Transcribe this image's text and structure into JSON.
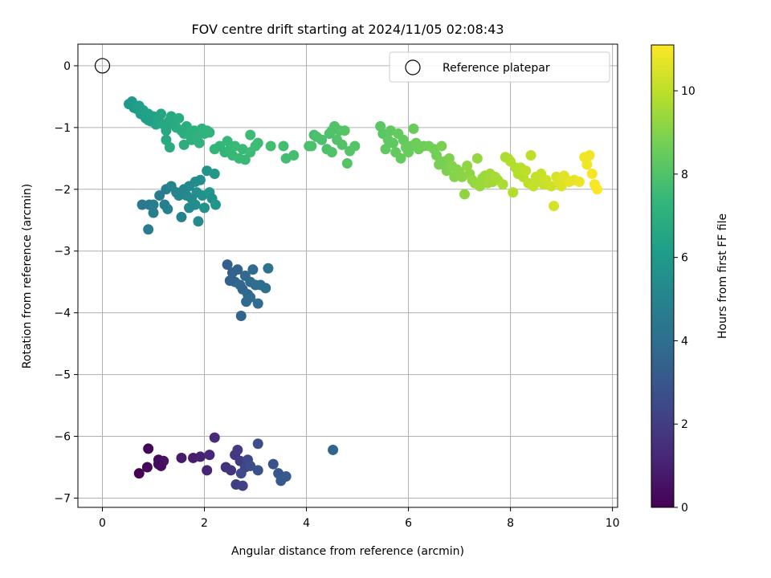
{
  "chart_data": {
    "type": "scatter",
    "title": "FOV centre drift starting at 2024/11/05 02:08:43",
    "xlabel": "Angular distance from reference (arcmin)",
    "ylabel": "Rotation from reference (arcmin)",
    "xlim": [
      -0.48,
      10.1
    ],
    "ylim": [
      -7.15,
      0.35
    ],
    "xticks": [
      0,
      2,
      4,
      6,
      8,
      10
    ],
    "yticks": [
      0,
      -1,
      -2,
      -3,
      -4,
      -5,
      -6,
      -7
    ],
    "grid": true,
    "legend": {
      "placement": "upper-right",
      "entries": [
        "Reference platepar"
      ]
    },
    "colorbar": {
      "label": "Hours from first FF file",
      "range": [
        0,
        11.1
      ],
      "ticks": [
        0,
        2,
        4,
        6,
        8,
        10
      ],
      "colormap": [
        "#440154",
        "#482878",
        "#3e4989",
        "#31688e",
        "#26828e",
        "#1f9e89",
        "#35b779",
        "#6ece58",
        "#b5de2b",
        "#fde725"
      ]
    },
    "reference_point": {
      "x": 0,
      "y": 0
    },
    "series": [
      {
        "points": [
          [
            0.72,
            -6.6,
            0.0
          ],
          [
            0.9,
            -6.2,
            0.1
          ],
          [
            0.88,
            -6.5,
            0.2
          ],
          [
            1.1,
            -6.38,
            0.3
          ],
          [
            1.15,
            -6.48,
            0.4
          ],
          [
            1.2,
            -6.4,
            0.5
          ],
          [
            1.1,
            -6.45,
            0.35
          ],
          [
            1.55,
            -6.35,
            0.8
          ],
          [
            1.78,
            -6.35,
            0.9
          ],
          [
            1.92,
            -6.33,
            1.0
          ],
          [
            2.05,
            -6.55,
            1.1
          ],
          [
            2.1,
            -6.3,
            1.2
          ],
          [
            2.2,
            -6.02,
            1.3
          ],
          [
            2.42,
            -6.5,
            1.6
          ],
          [
            2.52,
            -6.55,
            1.7
          ],
          [
            2.6,
            -6.3,
            1.8
          ],
          [
            2.65,
            -6.22,
            1.9
          ],
          [
            2.7,
            -6.4,
            2.0
          ],
          [
            2.62,
            -6.78,
            2.1
          ],
          [
            2.75,
            -6.8,
            2.2
          ],
          [
            2.8,
            -6.5,
            2.3
          ],
          [
            2.85,
            -6.38,
            2.4
          ],
          [
            2.72,
            -6.6,
            2.5
          ],
          [
            2.9,
            -6.48,
            2.6
          ],
          [
            3.05,
            -6.12,
            2.7
          ],
          [
            3.05,
            -6.55,
            2.8
          ],
          [
            3.35,
            -6.45,
            2.9
          ],
          [
            3.45,
            -6.6,
            3.0
          ],
          [
            3.5,
            -6.72,
            3.1
          ],
          [
            3.6,
            -6.65,
            3.2
          ],
          [
            4.52,
            -6.22,
            3.6
          ],
          [
            2.45,
            -3.22,
            3.4
          ],
          [
            2.55,
            -3.35,
            3.5
          ],
          [
            2.6,
            -3.5,
            3.6
          ],
          [
            2.5,
            -3.48,
            3.5
          ],
          [
            2.7,
            -3.55,
            3.7
          ],
          [
            2.75,
            -3.62,
            3.6
          ],
          [
            2.8,
            -3.4,
            3.8
          ],
          [
            2.85,
            -3.7,
            3.7
          ],
          [
            2.9,
            -3.5,
            3.9
          ],
          [
            2.95,
            -3.3,
            3.8
          ],
          [
            3.0,
            -3.55,
            4.0
          ],
          [
            3.05,
            -3.85,
            3.9
          ],
          [
            2.82,
            -3.82,
            3.7
          ],
          [
            2.72,
            -4.05,
            3.6
          ],
          [
            3.1,
            -3.55,
            4.1
          ],
          [
            3.25,
            -3.28,
            4.2
          ],
          [
            3.2,
            -3.6,
            4.1
          ],
          [
            2.9,
            -3.75,
            3.8
          ],
          [
            2.65,
            -3.3,
            3.5
          ],
          [
            0.78,
            -2.25,
            4.4
          ],
          [
            0.9,
            -2.65,
            4.6
          ],
          [
            0.92,
            -2.25,
            4.5
          ],
          [
            1.0,
            -2.25,
            4.7
          ],
          [
            1.0,
            -2.38,
            4.8
          ],
          [
            1.12,
            -2.1,
            4.6
          ],
          [
            1.22,
            -2.25,
            4.7
          ],
          [
            1.28,
            -2.32,
            4.9
          ],
          [
            1.25,
            -2.0,
            4.8
          ],
          [
            1.35,
            -1.95,
            5.0
          ],
          [
            1.45,
            -2.05,
            5.0
          ],
          [
            1.5,
            -2.1,
            5.1
          ],
          [
            1.55,
            -2.45,
            4.9
          ],
          [
            1.6,
            -2.0,
            5.1
          ],
          [
            1.65,
            -2.1,
            5.2
          ],
          [
            1.7,
            -1.95,
            5.2
          ],
          [
            1.75,
            -2.15,
            5.3
          ],
          [
            1.82,
            -2.25,
            5.4
          ],
          [
            1.85,
            -2.05,
            5.5
          ],
          [
            1.88,
            -2.52,
            5.3
          ],
          [
            1.92,
            -1.85,
            5.5
          ],
          [
            1.96,
            -2.1,
            5.6
          ],
          [
            2.0,
            -2.3,
            5.7
          ],
          [
            2.05,
            -1.7,
            5.7
          ],
          [
            2.1,
            -2.05,
            5.8
          ],
          [
            2.15,
            -2.15,
            5.6
          ],
          [
            2.2,
            -1.75,
            5.9
          ],
          [
            2.22,
            -2.25,
            5.8
          ],
          [
            1.82,
            -1.88,
            5.4
          ],
          [
            1.7,
            -2.3,
            5.3
          ],
          [
            0.52,
            -0.62,
            6.0
          ],
          [
            0.58,
            -0.58,
            6.0
          ],
          [
            0.62,
            -0.68,
            6.1
          ],
          [
            0.68,
            -0.7,
            6.1
          ],
          [
            0.72,
            -0.65,
            6.2
          ],
          [
            0.75,
            -0.78,
            6.2
          ],
          [
            0.8,
            -0.72,
            6.3
          ],
          [
            0.85,
            -0.85,
            6.3
          ],
          [
            0.9,
            -0.78,
            6.3
          ],
          [
            0.95,
            -0.9,
            6.4
          ],
          [
            1.0,
            -0.82,
            6.4
          ],
          [
            1.05,
            -0.95,
            6.5
          ],
          [
            1.1,
            -0.85,
            6.5
          ],
          [
            1.15,
            -0.78,
            6.5
          ],
          [
            1.2,
            -0.95,
            6.6
          ],
          [
            1.25,
            -1.05,
            6.6
          ],
          [
            1.3,
            -0.9,
            6.6
          ],
          [
            1.35,
            -0.82,
            6.7
          ],
          [
            1.4,
            -0.95,
            6.7
          ],
          [
            1.45,
            -1.0,
            6.8
          ],
          [
            1.5,
            -0.85,
            6.8
          ],
          [
            1.55,
            -1.05,
            6.8
          ],
          [
            1.6,
            -1.1,
            6.9
          ],
          [
            1.65,
            -0.98,
            6.9
          ],
          [
            1.7,
            -1.12,
            7.0
          ],
          [
            1.75,
            -1.2,
            7.0
          ],
          [
            1.8,
            -1.05,
            7.0
          ],
          [
            1.85,
            -1.15,
            7.1
          ],
          [
            1.9,
            -1.25,
            7.1
          ],
          [
            1.95,
            -1.02,
            7.1
          ],
          [
            2.0,
            -1.1,
            7.2
          ],
          [
            2.05,
            -1.05,
            7.2
          ],
          [
            2.1,
            -1.08,
            7.2
          ],
          [
            1.32,
            -1.32,
            6.8
          ],
          [
            1.25,
            -1.2,
            6.7
          ],
          [
            1.6,
            -1.28,
            6.9
          ],
          [
            0.9,
            -0.88,
            6.2
          ],
          [
            2.2,
            -1.35,
            7.3
          ],
          [
            2.3,
            -1.3,
            7.3
          ],
          [
            2.4,
            -1.4,
            7.3
          ],
          [
            2.45,
            -1.22,
            7.4
          ],
          [
            2.5,
            -1.35,
            7.4
          ],
          [
            2.55,
            -1.45,
            7.4
          ],
          [
            2.6,
            -1.3,
            7.5
          ],
          [
            2.68,
            -1.5,
            7.5
          ],
          [
            2.75,
            -1.35,
            7.5
          ],
          [
            2.9,
            -1.4,
            7.6
          ],
          [
            3.0,
            -1.3,
            7.6
          ],
          [
            3.05,
            -1.25,
            7.6
          ],
          [
            2.9,
            -1.12,
            7.6
          ],
          [
            2.8,
            -1.52,
            7.5
          ],
          [
            3.3,
            -1.3,
            7.7
          ],
          [
            3.55,
            -1.3,
            7.7
          ],
          [
            3.6,
            -1.5,
            7.7
          ],
          [
            3.75,
            -1.45,
            7.8
          ],
          [
            4.05,
            -1.3,
            7.8
          ],
          [
            4.15,
            -1.12,
            7.8
          ],
          [
            4.2,
            -1.15,
            7.9
          ],
          [
            4.3,
            -1.2,
            7.9
          ],
          [
            4.4,
            -1.35,
            7.9
          ],
          [
            4.45,
            -1.1,
            7.9
          ],
          [
            4.5,
            -1.05,
            8.0
          ],
          [
            4.55,
            -0.98,
            8.0
          ],
          [
            4.6,
            -1.2,
            8.0
          ],
          [
            4.65,
            -1.05,
            8.0
          ],
          [
            4.7,
            -1.28,
            8.0
          ],
          [
            4.75,
            -1.05,
            8.1
          ],
          [
            4.8,
            -1.58,
            8.1
          ],
          [
            4.85,
            -1.38,
            8.1
          ],
          [
            4.95,
            -1.3,
            8.1
          ],
          [
            4.5,
            -1.4,
            8.0
          ],
          [
            4.1,
            -1.3,
            7.9
          ],
          [
            5.45,
            -0.98,
            8.2
          ],
          [
            5.5,
            -1.1,
            8.2
          ],
          [
            5.55,
            -1.35,
            8.3
          ],
          [
            5.6,
            -1.2,
            8.3
          ],
          [
            5.65,
            -1.05,
            8.3
          ],
          [
            5.7,
            -1.25,
            8.3
          ],
          [
            5.75,
            -1.4,
            8.4
          ],
          [
            5.8,
            -1.1,
            8.4
          ],
          [
            5.85,
            -1.5,
            8.4
          ],
          [
            5.9,
            -1.2,
            8.4
          ],
          [
            5.95,
            -1.32,
            8.5
          ],
          [
            6.0,
            -1.4,
            8.5
          ],
          [
            6.05,
            -1.3,
            8.5
          ],
          [
            6.1,
            -1.02,
            8.5
          ],
          [
            6.15,
            -1.25,
            8.6
          ],
          [
            6.2,
            -1.35,
            8.6
          ],
          [
            6.3,
            -1.3,
            8.6
          ],
          [
            6.4,
            -1.3,
            8.7
          ],
          [
            6.5,
            -1.35,
            8.7
          ],
          [
            6.55,
            -1.45,
            8.7
          ],
          [
            6.6,
            -1.6,
            8.8
          ],
          [
            6.65,
            -1.3,
            8.8
          ],
          [
            6.7,
            -1.55,
            8.8
          ],
          [
            6.75,
            -1.7,
            8.9
          ],
          [
            6.8,
            -1.5,
            8.9
          ],
          [
            6.85,
            -1.62,
            9.0
          ],
          [
            6.9,
            -1.8,
            9.0
          ],
          [
            6.95,
            -1.68,
            9.0
          ],
          [
            7.0,
            -1.72,
            9.1
          ],
          [
            7.05,
            -1.8,
            9.1
          ],
          [
            7.1,
            -2.08,
            9.2
          ],
          [
            7.15,
            -1.62,
            9.2
          ],
          [
            7.2,
            -1.75,
            9.2
          ],
          [
            7.25,
            -1.85,
            9.3
          ],
          [
            7.3,
            -1.9,
            9.3
          ],
          [
            7.35,
            -1.5,
            9.3
          ],
          [
            7.4,
            -1.95,
            9.4
          ],
          [
            7.45,
            -1.82,
            9.4
          ],
          [
            7.5,
            -1.78,
            9.4
          ],
          [
            7.55,
            -1.9,
            9.5
          ],
          [
            7.6,
            -1.75,
            9.5
          ],
          [
            7.65,
            -1.88,
            9.5
          ],
          [
            7.7,
            -1.8,
            9.6
          ],
          [
            7.75,
            -1.85,
            9.6
          ],
          [
            7.85,
            -1.92,
            9.7
          ],
          [
            7.9,
            -1.48,
            9.7
          ],
          [
            7.95,
            -1.5,
            9.7
          ],
          [
            8.0,
            -1.55,
            9.8
          ],
          [
            8.05,
            -2.05,
            9.8
          ],
          [
            8.1,
            -1.65,
            9.8
          ],
          [
            8.15,
            -1.75,
            9.9
          ],
          [
            8.2,
            -1.65,
            9.9
          ],
          [
            8.25,
            -1.8,
            9.9
          ],
          [
            8.3,
            -1.7,
            10.0
          ],
          [
            8.35,
            -1.9,
            10.0
          ],
          [
            8.4,
            -1.45,
            10.0
          ],
          [
            8.45,
            -1.95,
            10.1
          ],
          [
            8.5,
            -1.8,
            10.1
          ],
          [
            8.55,
            -1.85,
            10.1
          ],
          [
            8.6,
            -1.75,
            10.2
          ],
          [
            8.65,
            -1.92,
            10.2
          ],
          [
            8.7,
            -1.85,
            10.3
          ],
          [
            8.8,
            -1.95,
            10.3
          ],
          [
            8.85,
            -2.27,
            10.4
          ],
          [
            8.9,
            -1.8,
            10.4
          ],
          [
            8.95,
            -1.88,
            10.5
          ],
          [
            9.0,
            -1.95,
            10.5
          ],
          [
            9.05,
            -1.78,
            10.6
          ],
          [
            9.1,
            -1.85,
            10.6
          ],
          [
            9.15,
            -1.88,
            10.7
          ],
          [
            9.25,
            -1.85,
            10.7
          ],
          [
            9.35,
            -1.88,
            10.8
          ],
          [
            9.45,
            -1.48,
            10.9
          ],
          [
            9.5,
            -1.6,
            10.9
          ],
          [
            9.55,
            -1.45,
            10.9
          ],
          [
            9.6,
            -1.75,
            11.0
          ],
          [
            9.65,
            -1.92,
            11.0
          ],
          [
            9.7,
            -2.0,
            11.1
          ]
        ]
      }
    ]
  }
}
